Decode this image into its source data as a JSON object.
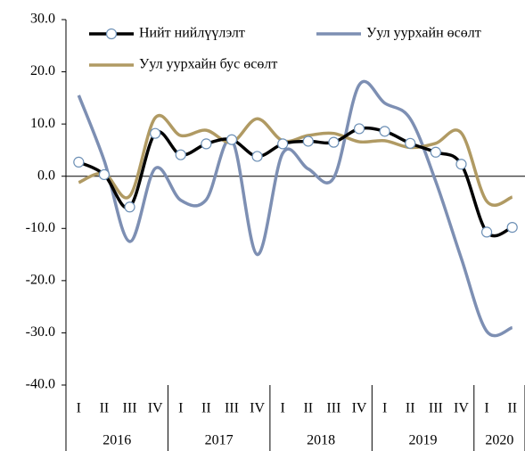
{
  "chart_data": {
    "type": "line",
    "categories": [
      "I",
      "II",
      "III",
      "IV",
      "I",
      "II",
      "III",
      "IV",
      "I",
      "II",
      "III",
      "IV",
      "I",
      "II",
      "III",
      "IV",
      "I",
      "II"
    ],
    "year_groups": [
      {
        "label": "2016",
        "count": 4
      },
      {
        "label": "2017",
        "count": 4
      },
      {
        "label": "2018",
        "count": 4
      },
      {
        "label": "2019",
        "count": 4
      },
      {
        "label": "2020",
        "count": 2
      }
    ],
    "series": [
      {
        "name": "Нийт нийлүүлэлт",
        "color": "#000000",
        "markers": true,
        "values": [
          2.7,
          0.3,
          -5.9,
          8.2,
          4.1,
          6.2,
          7.0,
          3.8,
          6.2,
          6.7,
          6.5,
          9.1,
          8.6,
          6.3,
          4.6,
          2.3,
          -10.7,
          -9.8
        ]
      },
      {
        "name": "Уул уурхайн өсөлт",
        "color": "#7d8fb3",
        "markers": false,
        "values": [
          15.5,
          3.0,
          -12.5,
          1.5,
          -4.6,
          -4.5,
          7.0,
          -15.0,
          4.4,
          1.4,
          -0.3,
          17.5,
          14.0,
          11.0,
          -1.0,
          -15.7,
          -29.7,
          -29.0
        ]
      },
      {
        "name": "Уул уурхайн бус өсөлт",
        "color": "#b09a63",
        "markers": false,
        "values": [
          -1.2,
          0.5,
          -3.8,
          11.2,
          7.8,
          8.8,
          6.5,
          11.0,
          6.8,
          7.8,
          8.2,
          6.6,
          6.8,
          5.5,
          6.3,
          8.3,
          -4.8,
          -4.0
        ]
      }
    ],
    "ylim": [
      -40,
      30
    ],
    "yticks": [
      {
        "value": -40,
        "label": "-40.0"
      },
      {
        "value": -30,
        "label": "-30.0"
      },
      {
        "value": -20,
        "label": "-20.0"
      },
      {
        "value": -10,
        "label": "-10.0"
      },
      {
        "value": 0,
        "label": "0.0"
      },
      {
        "value": 10,
        "label": "10.0"
      },
      {
        "value": 20,
        "label": "20.0"
      },
      {
        "value": 30,
        "label": "30.0"
      }
    ],
    "smooth": true
  }
}
